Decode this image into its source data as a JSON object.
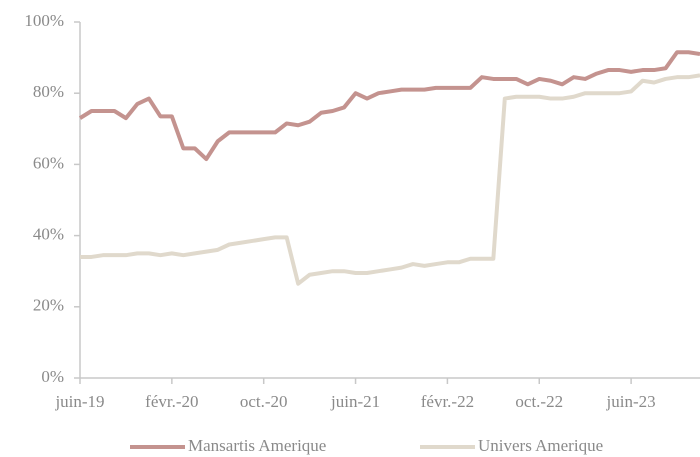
{
  "chart_data": {
    "type": "line",
    "categories": [
      "juin-19",
      null,
      null,
      null,
      null,
      null,
      null,
      null,
      "févr.-20",
      null,
      null,
      null,
      null,
      null,
      null,
      null,
      "oct.-20",
      null,
      null,
      null,
      null,
      null,
      null,
      null,
      "juin-21",
      null,
      null,
      null,
      null,
      null,
      null,
      null,
      "févr.-22",
      null,
      null,
      null,
      null,
      null,
      null,
      null,
      "oct.-22",
      null,
      null,
      null,
      null,
      null,
      null,
      null,
      "juin-23",
      null,
      null,
      null,
      null,
      null,
      null
    ],
    "series": [
      {
        "name": "Mansartis Amerique",
        "color": "#c4938f",
        "values": [
          73,
          75,
          75,
          75,
          73,
          77,
          78.5,
          73.5,
          73.5,
          64.5,
          64.5,
          61.5,
          66.5,
          69,
          69,
          69,
          69,
          69,
          71.5,
          71,
          72,
          74.5,
          75,
          76,
          80,
          78.5,
          80,
          80.5,
          81,
          81,
          81,
          81.5,
          81.5,
          81.5,
          81.5,
          84.5,
          84,
          84,
          84,
          82.5,
          84,
          83.5,
          82.5,
          84.5,
          84,
          85.5,
          86.5,
          86.5,
          86,
          86.5,
          86.5,
          87,
          91.5,
          91.5,
          91
        ]
      },
      {
        "name": "Univers Amerique",
        "color": "#e0d9cc",
        "values": [
          34,
          34,
          34.5,
          34.5,
          34.5,
          35,
          35,
          34.5,
          35,
          34.5,
          35,
          35.5,
          36,
          37.5,
          38,
          38.5,
          39,
          39.5,
          39.5,
          26.5,
          29,
          29.5,
          30,
          30,
          29.5,
          29.5,
          30,
          30.5,
          31,
          32,
          31.5,
          32,
          32.5,
          32.5,
          33.5,
          33.5,
          33.5,
          78.5,
          79,
          79,
          79,
          78.5,
          78.5,
          79,
          80,
          80,
          80,
          80,
          80.5,
          83.5,
          83,
          84,
          84.5,
          84.5,
          85
        ]
      }
    ],
    "ylim": [
      0,
      100
    ],
    "yticks": [
      {
        "value": 0,
        "label": "0%"
      },
      {
        "value": 20,
        "label": "20%"
      },
      {
        "value": 40,
        "label": "40%"
      },
      {
        "value": 60,
        "label": "60%"
      },
      {
        "value": 80,
        "label": "80%"
      },
      {
        "value": 100,
        "label": "100%"
      }
    ],
    "grid": false,
    "legend": "bottom"
  }
}
